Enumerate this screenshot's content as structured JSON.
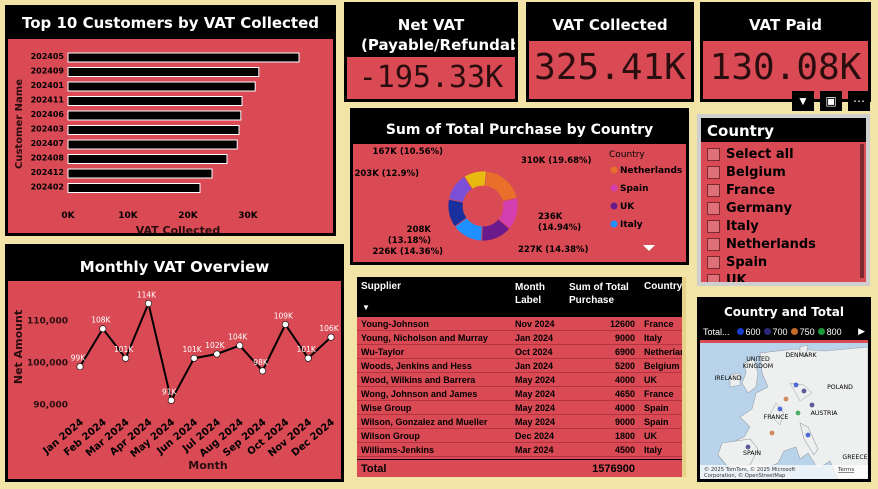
{
  "top_customers": {
    "title": "Top 10 Customers by VAT Collected",
    "ylabel": "Customer Name",
    "xlabel": "VAT Collected",
    "chart_data": {
      "type": "bar",
      "orientation": "horizontal",
      "categories": [
        "202405",
        "202409",
        "202401",
        "202411",
        "202406",
        "202403",
        "202407",
        "202408",
        "202412",
        "202402"
      ],
      "values": [
        38500,
        31800,
        31200,
        29000,
        28800,
        28500,
        28200,
        26500,
        24000,
        22000
      ],
      "xlim": [
        0,
        40000
      ],
      "xticks": [
        "0K",
        "10K",
        "20K",
        "30K"
      ],
      "xtick_values": [
        0,
        10000,
        20000,
        30000
      ]
    }
  },
  "cards": {
    "net_vat_title": "Net VAT (Payable/Refundable)",
    "net_vat_value": "-195.33K",
    "vat_collected_title": "VAT Collected",
    "vat_collected_value": "325.41K",
    "vat_paid_title": "VAT Paid",
    "vat_paid_value": "130.08K"
  },
  "donut": {
    "title": "Sum of Total Purchase by Country",
    "legend_title": "Country",
    "legend": [
      {
        "name": "Netherlands",
        "color": "#e8702a"
      },
      {
        "name": "Spain",
        "color": "#d43fb0"
      },
      {
        "name": "UK",
        "color": "#6b1a8c"
      },
      {
        "name": "Italy",
        "color": "#1e90ff"
      }
    ],
    "chart_data": {
      "type": "pie",
      "slices": [
        {
          "label": "310K (19.68%)",
          "value": 310,
          "color": "#e8702a"
        },
        {
          "label": "236K (14.94%)",
          "value": 236,
          "color": "#d43fb0"
        },
        {
          "label": "227K (14.38%)",
          "value": 227,
          "color": "#6b1a8c"
        },
        {
          "label": "226K (14.36%)",
          "value": 226,
          "color": "#1e90ff"
        },
        {
          "label": "208K (13.18%)",
          "value": 208,
          "color": "#1a2f9e"
        },
        {
          "label": "203K (12.9%)",
          "value": 203,
          "color": "#7b4fd6"
        },
        {
          "label": "167K (10.56%)",
          "value": 167,
          "color": "#e8b90f"
        }
      ]
    }
  },
  "slicer": {
    "title": "Country",
    "items": [
      "Select all",
      "Belgium",
      "France",
      "Germany",
      "Italy",
      "Netherlands",
      "Spain",
      "UK"
    ]
  },
  "monthly": {
    "title": "Monthly VAT Overview",
    "ylabel": "Net Amount",
    "xlabel": "Month",
    "chart_data": {
      "type": "line",
      "categories": [
        "Jan 2024",
        "Feb 2024",
        "Mar 2024",
        "Apr 2024",
        "May 2024",
        "Jun 2024",
        "Jul 2024",
        "Aug 2024",
        "Sep 2024",
        "Oct 2024",
        "Nov 2024",
        "Dec 2024"
      ],
      "values": [
        99000,
        108000,
        101000,
        114000,
        91000,
        101000,
        102000,
        104000,
        98000,
        109000,
        101000,
        106000
      ],
      "data_labels": [
        "99K",
        "108K",
        "101K",
        "114K",
        "91K",
        "101K",
        "102K",
        "104K",
        "98K",
        "109K",
        "101K",
        "106K"
      ],
      "ylim": [
        88000,
        116000
      ],
      "yticks": [
        "90,000",
        "100,000",
        "110,000"
      ],
      "ytick_values": [
        90000,
        100000,
        110000
      ]
    }
  },
  "table": {
    "headers": [
      "Supplier",
      "Month Label",
      "Sum of Total Purchase",
      "Country"
    ],
    "rows": [
      [
        "Young-Johnson",
        "Nov 2024",
        "12600",
        "France"
      ],
      [
        "Young, Nicholson and Murray",
        "Jan 2024",
        "9000",
        "Italy"
      ],
      [
        "Wu-Taylor",
        "Oct 2024",
        "6900",
        "Netherlands"
      ],
      [
        "Woods, Jenkins and Hess",
        "Jan 2024",
        "5200",
        "Belgium"
      ],
      [
        "Wood, Wilkins and Barrera",
        "May 2024",
        "4000",
        "UK"
      ],
      [
        "Wong, Johnson and James",
        "May 2024",
        "4650",
        "France"
      ],
      [
        "Wise Group",
        "May 2024",
        "4000",
        "Spain"
      ],
      [
        "Wilson, Gonzalez and Mueller",
        "May 2024",
        "9000",
        "Spain"
      ],
      [
        "Wilson Group",
        "Dec 2024",
        "1800",
        "UK"
      ],
      [
        "Williams-Jenkins",
        "Mar 2024",
        "4500",
        "Italy"
      ]
    ],
    "total_label": "Total",
    "total_value": "1576900"
  },
  "map": {
    "title": "Country and Total Purchase",
    "legend_label": "Total...",
    "legend": [
      {
        "label": "600",
        "color": "#1a3ccc"
      },
      {
        "label": "700",
        "color": "#2a2a7a"
      },
      {
        "label": "750",
        "color": "#c86a2a"
      },
      {
        "label": "800",
        "color": "#1a9a3a"
      }
    ],
    "place_labels": [
      "UNITED KINGDOM",
      "DENMARK",
      "IRELAND",
      "POLAND",
      "FRANCE",
      "AUSTRIA",
      "SPAIN",
      "GREECE"
    ],
    "attribution": "© 2025 TomTom, © 2025 Microsoft Corporation, © OpenStreetMap",
    "terms": "Terms"
  }
}
